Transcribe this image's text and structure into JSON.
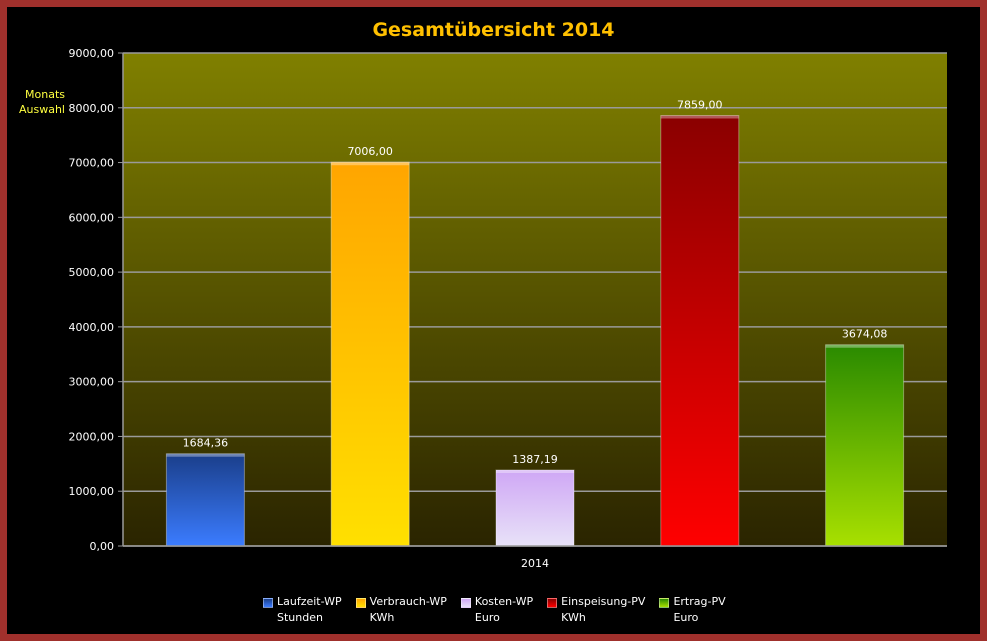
{
  "chart_data": {
    "type": "bar",
    "title": "Gesamtübersicht 2014",
    "categories": [
      "2014"
    ],
    "ylim": [
      0,
      9000
    ],
    "y_ticks": [
      "0,00",
      "1000,00",
      "2000,00",
      "3000,00",
      "4000,00",
      "5000,00",
      "6000,00",
      "7000,00",
      "8000,00",
      "9000,00"
    ],
    "grid": true,
    "legend_position": "bottom",
    "series": [
      {
        "name": "Laufzeit-WP Stunden",
        "name_lines": [
          "Laufzeit-WP",
          "Stunden"
        ],
        "value": 1684.36,
        "label": "1684,36",
        "color": "#2f66d8",
        "color_top": "#1a3e8a",
        "color_bottom": "#3b7cff"
      },
      {
        "name": "Verbrauch-WP KWh",
        "name_lines": [
          "Verbrauch-WP",
          "KWh"
        ],
        "value": 7006.0,
        "label": "7006,00",
        "color": "#ffb000",
        "color_top": "#ffa500",
        "color_bottom": "#ffe000"
      },
      {
        "name": "Kosten-WP Euro",
        "name_lines": [
          "Kosten-WP",
          "Euro"
        ],
        "value": 1387.19,
        "label": "1387,19",
        "color": "#d8b8f8",
        "color_top": "#cfa7f5",
        "color_bottom": "#e8e2f8"
      },
      {
        "name": "Einspeisung-PV KWh",
        "name_lines": [
          "Einspeisung-PV",
          "KWh"
        ],
        "value": 7859.0,
        "label": "7859,00",
        "color": "#e00000",
        "color_top": "#8a0000",
        "color_bottom": "#ff0000"
      },
      {
        "name": "Ertrag-PV Euro",
        "name_lines": [
          "Ertrag-PV",
          "Euro"
        ],
        "value": 3674.08,
        "label": "3674,08",
        "color": "#4fb800",
        "color_top": "#2a8a00",
        "color_bottom": "#a8e000"
      }
    ]
  },
  "side_note": [
    "Monats",
    "Auswahl"
  ],
  "colors": {
    "frame": "#a0302c",
    "background": "#000000",
    "plot_top": "#808000",
    "plot_bottom": "#2a2400",
    "title": "#ffc000",
    "side_note": "#ffff40"
  }
}
